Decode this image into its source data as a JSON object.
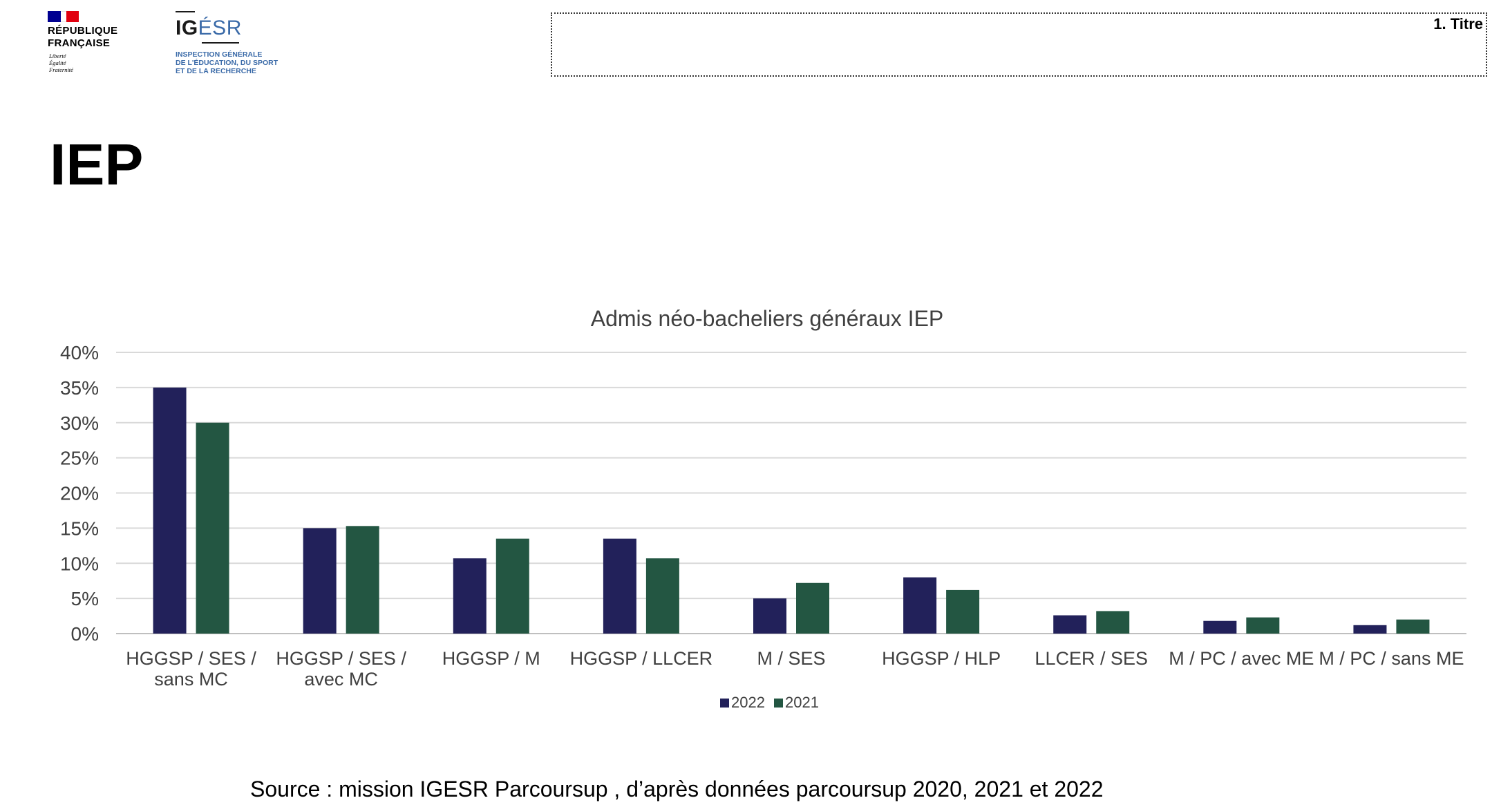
{
  "header": {
    "republique_text": "RÉPUBLIQUE\nFRANÇAISE",
    "republique_motto": "Liberté\nÉgalité\nFraternité",
    "igesr_name_bold": "IG",
    "igesr_name_light": "ÉSR",
    "igesr_subtitle": "INSPECTION GÉNÉRALE\nDE L'ÉDUCATION, DU SPORT\nET DE LA RECHERCHE",
    "title_placeholder": "1. Titre"
  },
  "slide": {
    "title": "IEP"
  },
  "chart_data": {
    "type": "bar",
    "title": "Admis néo-bacheliers généraux IEP",
    "xlabel": "",
    "ylabel": "",
    "ylim": [
      0,
      40
    ],
    "y_ticks": [
      "0%",
      "5%",
      "10%",
      "15%",
      "20%",
      "25%",
      "30%",
      "35%",
      "40%"
    ],
    "categories": [
      "HGGSP / SES / sans MC",
      "HGGSP / SES / avec MC",
      "HGGSP / M",
      "HGGSP / LLCER",
      "M / SES",
      "HGGSP / HLP",
      "LLCER / SES",
      "M / PC / avec ME",
      "M / PC / sans ME"
    ],
    "category_lines": [
      [
        "HGGSP / SES /",
        "sans MC"
      ],
      [
        "HGGSP / SES /",
        "avec MC"
      ],
      [
        "HGGSP / M"
      ],
      [
        "HGGSP / LLCER"
      ],
      [
        "M / SES"
      ],
      [
        "HGGSP / HLP"
      ],
      [
        "LLCER / SES"
      ],
      [
        "M / PC / avec ME"
      ],
      [
        "M / PC / sans ME"
      ]
    ],
    "series": [
      {
        "name": "2022",
        "color": "#22215a",
        "values": [
          35.0,
          15.0,
          10.7,
          13.5,
          5.0,
          8.0,
          2.6,
          1.8,
          1.2
        ]
      },
      {
        "name": "2021",
        "color": "#235642",
        "values": [
          30.0,
          15.3,
          13.5,
          10.7,
          7.2,
          6.2,
          3.2,
          2.3,
          2.0
        ]
      }
    ],
    "grid": true,
    "legend_position": "bottom"
  },
  "source_text": "Source : mission IGESR Parcoursup , d’après données parcoursup 2020, 2021 et 2022"
}
